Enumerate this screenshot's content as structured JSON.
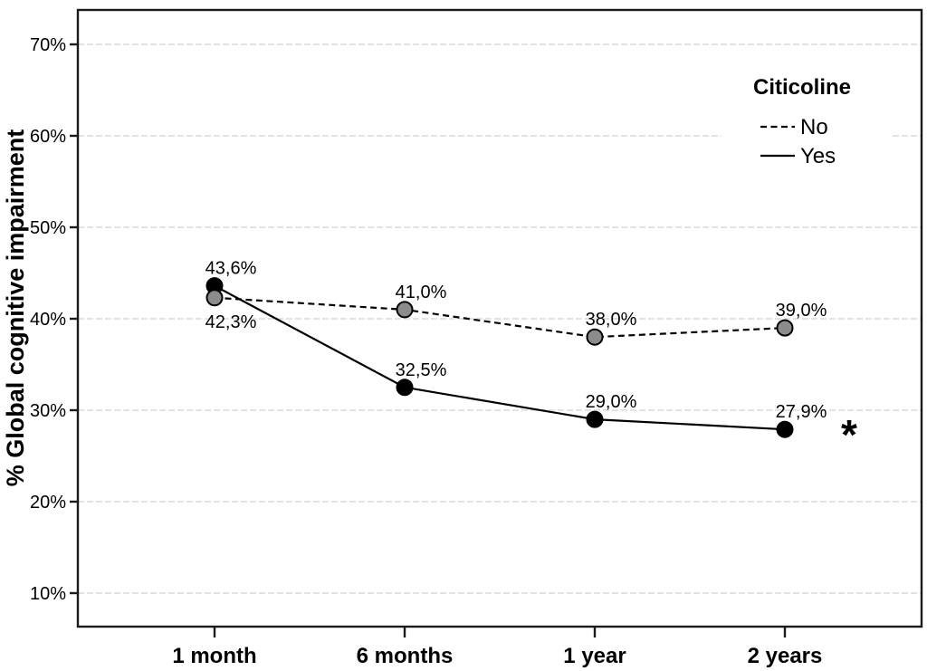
{
  "chart_data": {
    "type": "line",
    "title": "",
    "ylabel": "% Global cognitive impairment",
    "xlabel": "",
    "categories": [
      "1 month",
      "6 months",
      "1 year",
      "2 years"
    ],
    "series": [
      {
        "name": "Yes",
        "values": [
          43.6,
          32.5,
          29.0,
          27.9
        ],
        "value_labels": [
          "43,6%",
          "32,5%",
          "29,0%",
          "27,9%"
        ],
        "label_placement": [
          "above",
          "above",
          "above",
          "above"
        ],
        "line_style": "solid",
        "line_color": "#000000",
        "marker": "circle",
        "marker_fill": "#000000",
        "marker_stroke": "#000000"
      },
      {
        "name": "No",
        "values": [
          42.3,
          41.0,
          38.0,
          39.0
        ],
        "value_labels": [
          "42,3%",
          "41,0%",
          "38,0%",
          "39,0%"
        ],
        "label_placement": [
          "below",
          "above",
          "above",
          "above"
        ],
        "line_style": "dashed",
        "line_color": "#000000",
        "marker": "circle",
        "marker_fill": "#8c8c8c",
        "marker_stroke": "#000000"
      }
    ],
    "y_axis": {
      "tick_labels": [
        "10%",
        "20%",
        "30%",
        "40%",
        "50%",
        "60%",
        "70%"
      ],
      "tick_values": [
        10,
        20,
        30,
        40,
        50,
        60,
        70
      ],
      "ylim": [
        6.2,
        73.9
      ]
    },
    "x_axis": {
      "tick_labels": [
        "1 month",
        "6 months",
        "1 year",
        "2 years"
      ]
    },
    "legend": {
      "title": "Citicoline",
      "entries": [
        {
          "label": "No",
          "line_style": "dashed"
        },
        {
          "label": "Yes",
          "line_style": "solid"
        }
      ],
      "position": "top-right",
      "background": "#ffffff"
    },
    "annotation": {
      "text": "*",
      "meaning": "significance-marker",
      "near_series": "Yes",
      "near_category": "2 years"
    },
    "grid": {
      "horizontal": true,
      "style": "dashed",
      "color": "#e3e3e3"
    },
    "colors": {
      "frame": "#1a1a1a",
      "text": "#000000",
      "background": "#ffffff"
    }
  }
}
